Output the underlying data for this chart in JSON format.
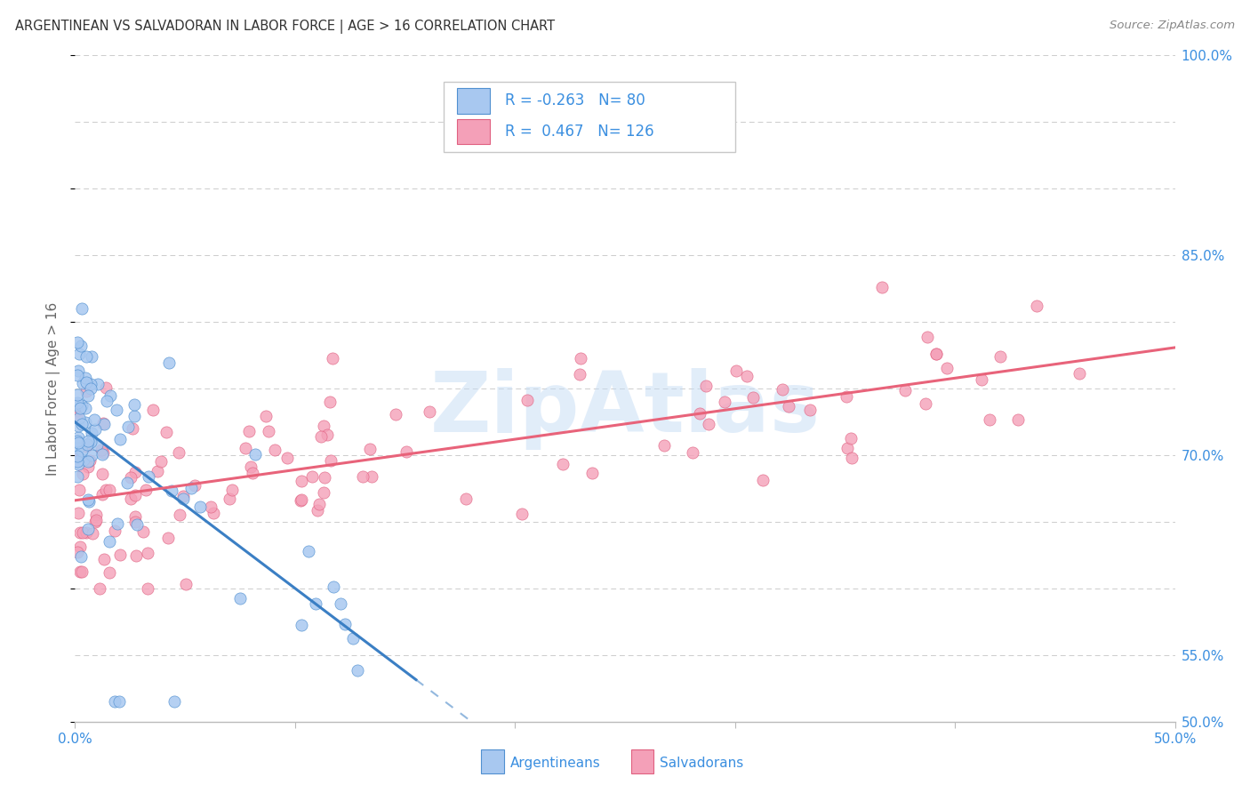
{
  "title": "ARGENTINEAN VS SALVADORAN IN LABOR FORCE | AGE > 16 CORRELATION CHART",
  "source": "Source: ZipAtlas.com",
  "ylabel": "In Labor Force | Age > 16",
  "xlim": [
    0.0,
    0.5
  ],
  "ylim": [
    0.5,
    1.0
  ],
  "blue_r": "-0.263",
  "blue_n": "80",
  "pink_r": "0.467",
  "pink_n": "126",
  "blue_color": "#A8C8F0",
  "pink_color": "#F4A0B8",
  "blue_edge_color": "#5090D0",
  "pink_edge_color": "#E06080",
  "blue_line_color": "#3B7FC4",
  "pink_line_color": "#E8637A",
  "axis_label_color": "#3B8FE0",
  "title_color": "#333333",
  "source_color": "#888888",
  "watermark": "ZipAtlas",
  "watermark_color": "#C5DCF5",
  "background_color": "#FFFFFF",
  "grid_color": "#CCCCCC",
  "ytick_show_vals": [
    0.5,
    0.55,
    0.7,
    0.85,
    1.0
  ],
  "ytick_show_labels": [
    "50.0%",
    "55.0%",
    "70.0%",
    "85.0%",
    "100.0%"
  ],
  "ytick_all_vals": [
    0.5,
    0.55,
    0.6,
    0.65,
    0.7,
    0.75,
    0.8,
    0.85,
    0.9,
    0.95,
    1.0
  ]
}
